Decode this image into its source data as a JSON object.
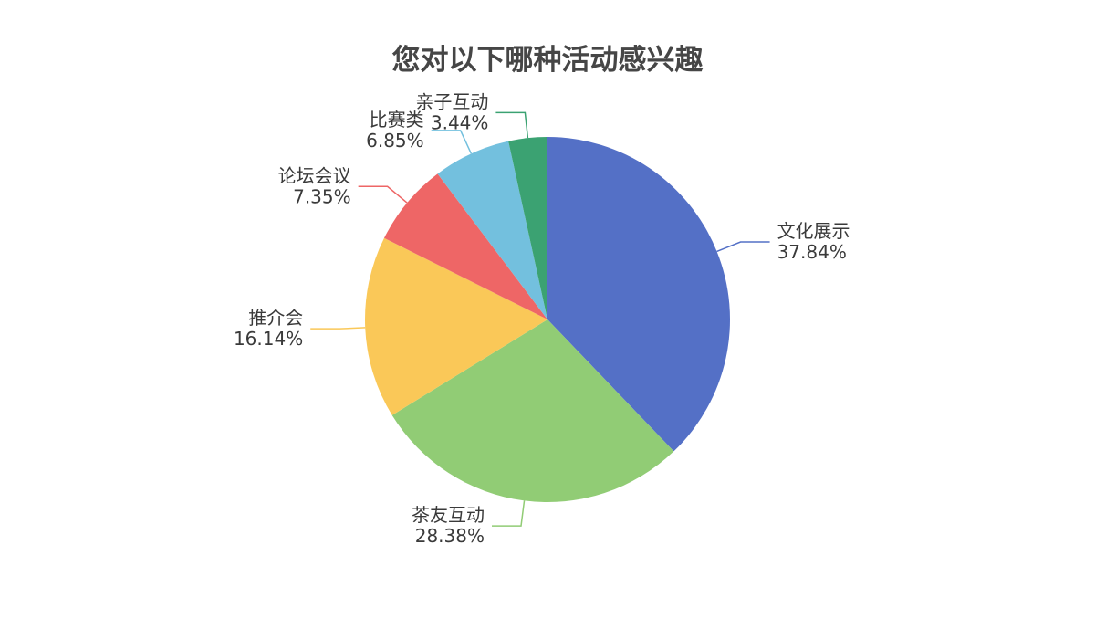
{
  "chart_data": {
    "type": "pie",
    "title": "您对以下哪种活动感兴趣",
    "start": "top",
    "direction": "clockwise",
    "slices": [
      {
        "name": "文化展示",
        "value": 37.84,
        "label": "37.84%",
        "color": "#5470c6"
      },
      {
        "name": "茶友互动",
        "value": 28.38,
        "label": "28.38%",
        "color": "#91cc75"
      },
      {
        "name": "推介会",
        "value": 16.14,
        "label": "16.14%",
        "color": "#fac858"
      },
      {
        "name": "论坛会议",
        "value": 7.35,
        "label": "7.35%",
        "color": "#ee6666"
      },
      {
        "name": "比赛类",
        "value": 6.85,
        "label": "6.85%",
        "color": "#73c0de"
      },
      {
        "name": "亲子互动",
        "value": 3.44,
        "label": "3.44%",
        "color": "#3ba272"
      }
    ]
  }
}
